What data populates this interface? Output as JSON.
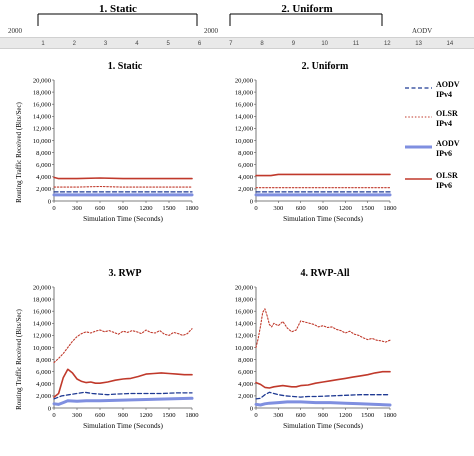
{
  "top_strip": {
    "left_title": "1. Static",
    "right_title": "2. Uniform",
    "left_fragment": "2000",
    "middle_fragment": "2000",
    "right_fragment": "AODV",
    "ruler_marks": [
      "1",
      "2",
      "3",
      "4",
      "5",
      "6",
      "7",
      "8",
      "9",
      "10",
      "11",
      "12",
      "13",
      "14"
    ]
  },
  "legend": {
    "entries": [
      {
        "line1": "AODV",
        "line2": "IPv4",
        "color": "#1f3a93",
        "style": "dashed"
      },
      {
        "line1": "OLSR",
        "line2": "IPv4",
        "color": "#c0392b",
        "style": "dotted"
      },
      {
        "line1": "AODV",
        "line2": "IPv6",
        "color": "#7f8fe0",
        "style": "thick"
      },
      {
        "line1": "OLSR",
        "line2": "IPv6",
        "color": "#c0392b",
        "style": "solid"
      }
    ]
  },
  "chart_data": [
    {
      "type": "line",
      "title": "1. Static",
      "xlabel": "Simulation Time (Seconds)",
      "ylabel": "Routing Traffic Received (Bits/Sec)",
      "xlim": [
        0,
        1800
      ],
      "ylim": [
        0,
        20000
      ],
      "xticks": [
        "0",
        "300",
        "600",
        "900",
        "1200",
        "1500",
        "1800"
      ],
      "yticks": [
        "0",
        "2,000",
        "4,000",
        "6,000",
        "8,000",
        "10,000",
        "12,000",
        "14,000",
        "16,000",
        "18,000",
        "20,000"
      ],
      "series": [
        {
          "name": "AODV IPv4",
          "x": [
            0,
            300,
            600,
            900,
            1200,
            1500,
            1800
          ],
          "values": [
            1500,
            1500,
            1500,
            1500,
            1500,
            1500,
            1500
          ]
        },
        {
          "name": "OLSR IPv4",
          "x": [
            0,
            300,
            600,
            900,
            1200,
            1500,
            1800
          ],
          "values": [
            2300,
            2300,
            2400,
            2300,
            2300,
            2300,
            2300
          ]
        },
        {
          "name": "AODV IPv6",
          "x": [
            0,
            300,
            600,
            900,
            1200,
            1500,
            1800
          ],
          "values": [
            1000,
            1000,
            1000,
            1000,
            1000,
            1000,
            1000
          ]
        },
        {
          "name": "OLSR IPv6",
          "x": [
            0,
            60,
            300,
            600,
            900,
            1200,
            1500,
            1800
          ],
          "values": [
            3900,
            3700,
            3700,
            3800,
            3700,
            3700,
            3700,
            3700
          ]
        }
      ]
    },
    {
      "type": "line",
      "title": "2. Uniform",
      "xlabel": "Simulation Time (Seconds)",
      "ylabel": "",
      "xlim": [
        0,
        1800
      ],
      "ylim": [
        0,
        20000
      ],
      "xticks": [
        "0",
        "300",
        "600",
        "900",
        "1200",
        "1500",
        "1800"
      ],
      "yticks": [
        "0",
        "2,000",
        "4,000",
        "6,000",
        "8,000",
        "10,000",
        "12,000",
        "14,000",
        "16,000",
        "18,000",
        "20,000"
      ],
      "series": [
        {
          "name": "AODV IPv4",
          "x": [
            0,
            300,
            600,
            900,
            1200,
            1500,
            1800
          ],
          "values": [
            1500,
            1500,
            1500,
            1500,
            1500,
            1500,
            1500
          ]
        },
        {
          "name": "OLSR IPv4",
          "x": [
            0,
            300,
            600,
            900,
            1200,
            1500,
            1800
          ],
          "values": [
            2200,
            2200,
            2200,
            2200,
            2200,
            2200,
            2200
          ]
        },
        {
          "name": "AODV IPv6",
          "x": [
            0,
            300,
            600,
            900,
            1200,
            1500,
            1800
          ],
          "values": [
            1000,
            1000,
            1000,
            1000,
            1000,
            1000,
            1000
          ]
        },
        {
          "name": "OLSR IPv6",
          "x": [
            0,
            200,
            300,
            600,
            900,
            1200,
            1500,
            1800
          ],
          "values": [
            4200,
            4200,
            4400,
            4400,
            4400,
            4400,
            4400,
            4400
          ]
        }
      ]
    },
    {
      "type": "line",
      "title": "3. RWP",
      "xlabel": "Simulation Time (Seconds)",
      "ylabel": "Routing Traffic Received (Bits/Sec)",
      "xlim": [
        0,
        1800
      ],
      "ylim": [
        0,
        20000
      ],
      "xticks": [
        "0",
        "300",
        "600",
        "900",
        "1200",
        "1500",
        "1800"
      ],
      "yticks": [
        "0",
        "2,000",
        "4,000",
        "6,000",
        "8,000",
        "10,000",
        "12,000",
        "14,000",
        "16,000",
        "18,000",
        "20,000"
      ],
      "series": [
        {
          "name": "AODV IPv4",
          "x": [
            0,
            100,
            200,
            300,
            400,
            500,
            600,
            700,
            800,
            1000,
            1200,
            1400,
            1600,
            1800
          ],
          "values": [
            1500,
            2000,
            2200,
            2400,
            2600,
            2400,
            2300,
            2200,
            2300,
            2400,
            2400,
            2400,
            2500,
            2500
          ]
        },
        {
          "name": "OLSR IPv4",
          "x": [
            0,
            60,
            120,
            180,
            240,
            300,
            360,
            420,
            480,
            540,
            600,
            660,
            720,
            780,
            840,
            900,
            960,
            1020,
            1080,
            1140,
            1200,
            1260,
            1320,
            1380,
            1440,
            1500,
            1560,
            1620,
            1680,
            1740,
            1800
          ],
          "values": [
            7500,
            8200,
            9000,
            10000,
            11000,
            11800,
            12300,
            12600,
            12400,
            12700,
            12900,
            12600,
            12800,
            12500,
            12200,
            12700,
            12500,
            12800,
            12600,
            12300,
            12900,
            12500,
            12400,
            12800,
            12200,
            12000,
            12500,
            12300,
            12000,
            12300,
            13100
          ]
        },
        {
          "name": "AODV IPv6",
          "x": [
            0,
            60,
            120,
            180,
            300,
            420,
            600,
            900,
            1200,
            1500,
            1800
          ],
          "values": [
            700,
            600,
            900,
            1200,
            1100,
            1200,
            1200,
            1300,
            1400,
            1500,
            1600
          ]
        },
        {
          "name": "OLSR IPv6",
          "x": [
            0,
            60,
            120,
            180,
            240,
            300,
            360,
            420,
            480,
            540,
            600,
            700,
            800,
            900,
            1000,
            1100,
            1200,
            1300,
            1400,
            1500,
            1600,
            1700,
            1800
          ],
          "values": [
            1800,
            2400,
            5000,
            6400,
            5800,
            4800,
            4400,
            4200,
            4300,
            4100,
            4100,
            4300,
            4600,
            4800,
            4900,
            5200,
            5600,
            5700,
            5800,
            5700,
            5600,
            5500,
            5500
          ]
        }
      ]
    },
    {
      "type": "line",
      "title": "4. RWP-All",
      "xlabel": "Simulation Time (Seconds)",
      "ylabel": "",
      "xlim": [
        0,
        1800
      ],
      "ylim": [
        0,
        20000
      ],
      "xticks": [
        "0",
        "300",
        "600",
        "900",
        "1200",
        "1500",
        "1800"
      ],
      "yticks": [
        "0",
        "2,000",
        "4,000",
        "6,000",
        "8,000",
        "10,000",
        "12,000",
        "14,000",
        "16,000",
        "18,000",
        "20,000"
      ],
      "series": [
        {
          "name": "AODV IPv4",
          "x": [
            0,
            60,
            120,
            180,
            240,
            300,
            400,
            500,
            600,
            700,
            800,
            1000,
            1200,
            1400,
            1600,
            1800
          ],
          "values": [
            1500,
            1600,
            2200,
            2600,
            2400,
            2200,
            2000,
            1900,
            1800,
            1900,
            1900,
            2000,
            2100,
            2200,
            2200,
            2200
          ]
        },
        {
          "name": "OLSR IPv4",
          "x": [
            0,
            30,
            60,
            90,
            120,
            150,
            180,
            210,
            240,
            300,
            360,
            420,
            480,
            540,
            600,
            660,
            720,
            780,
            840,
            900,
            960,
            1020,
            1080,
            1140,
            1200,
            1260,
            1320,
            1380,
            1440,
            1500,
            1560,
            1620,
            1680,
            1740,
            1800
          ],
          "values": [
            10000,
            11500,
            13500,
            15800,
            16400,
            15200,
            13800,
            13400,
            14000,
            13600,
            14300,
            13200,
            12600,
            12900,
            14400,
            14200,
            14000,
            13800,
            13400,
            13600,
            13300,
            13400,
            13000,
            12800,
            12400,
            12700,
            12200,
            12000,
            11600,
            11300,
            11500,
            11200,
            11100,
            10900,
            11200
          ]
        },
        {
          "name": "AODV IPv6",
          "x": [
            0,
            60,
            120,
            180,
            300,
            420,
            600,
            800,
            1000,
            1200,
            1400,
            1600,
            1800
          ],
          "values": [
            600,
            500,
            700,
            800,
            900,
            1000,
            1000,
            900,
            900,
            800,
            700,
            600,
            500
          ]
        },
        {
          "name": "OLSR IPv6",
          "x": [
            0,
            60,
            120,
            180,
            240,
            300,
            360,
            420,
            480,
            540,
            600,
            700,
            800,
            900,
            1000,
            1100,
            1200,
            1300,
            1400,
            1500,
            1600,
            1700,
            1800
          ],
          "values": [
            4200,
            3900,
            3400,
            3300,
            3500,
            3600,
            3700,
            3600,
            3500,
            3500,
            3700,
            3800,
            4100,
            4300,
            4500,
            4700,
            4900,
            5100,
            5300,
            5500,
            5800,
            6000,
            6000
          ]
        }
      ]
    }
  ]
}
